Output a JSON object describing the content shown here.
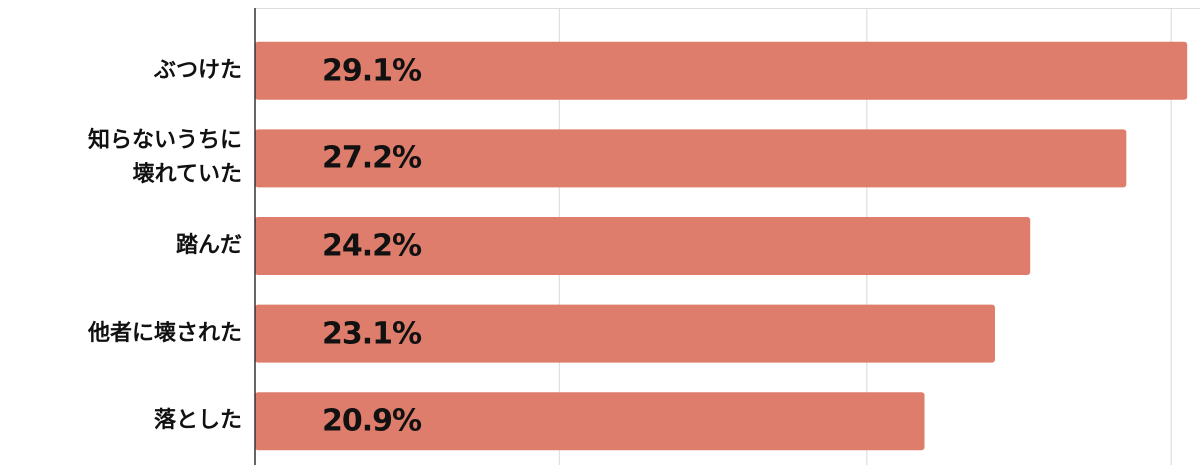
{
  "chart_data": {
    "type": "bar",
    "orientation": "horizontal",
    "categories": [
      "ぶつけた",
      "知らないうちに\n壊れていた",
      "踏んだ",
      "他者に壊された",
      "落とした"
    ],
    "values": [
      29.1,
      27.2,
      24.2,
      23.1,
      20.9
    ],
    "value_labels": [
      "29.1%",
      "27.2%",
      "24.2%",
      "23.1%",
      "20.9%"
    ],
    "color": "#de7d6b",
    "xlim": [
      0,
      29.5
    ],
    "xticks": [
      9.5,
      19.1,
      28.6
    ],
    "grid": true
  }
}
